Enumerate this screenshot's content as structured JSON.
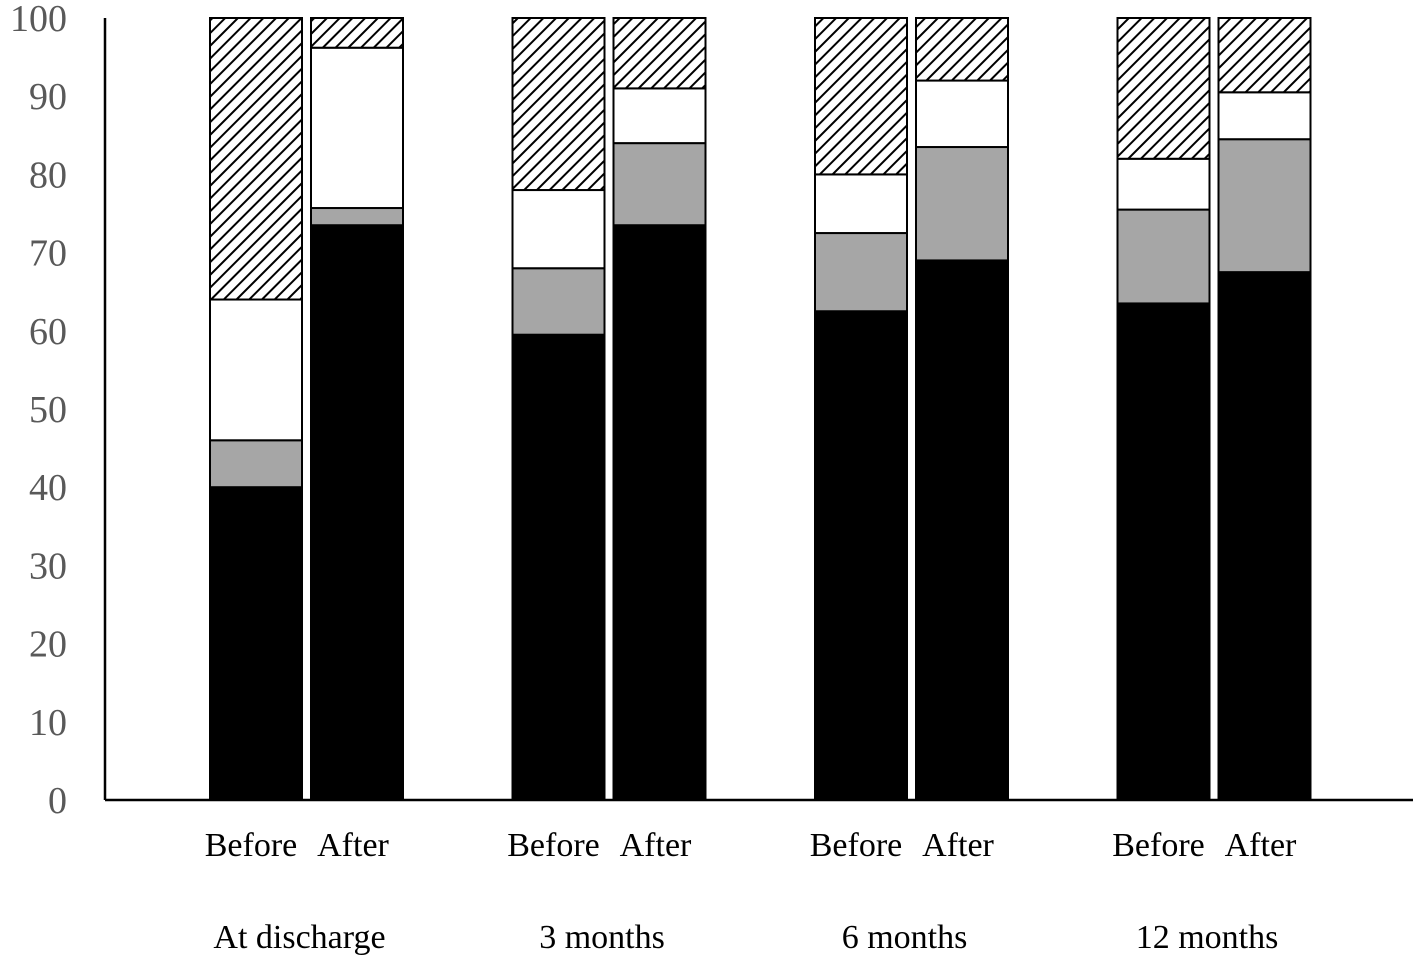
{
  "chart_data": {
    "type": "bar",
    "stacked": true,
    "title": "",
    "xlabel": "",
    "ylabel": "",
    "ylim": [
      0,
      100
    ],
    "yticks": [
      "0",
      "10",
      "20",
      "30",
      "40",
      "50",
      "60",
      "70",
      "80",
      "90",
      "100"
    ],
    "grid": false,
    "legend": "none",
    "groups": [
      {
        "label": "At discharge",
        "bars": [
          {
            "label": "Before",
            "segments": [
              40,
              6,
              18,
              37
            ]
          },
          {
            "label": "After",
            "segments": [
              73.5,
              2.2,
              20.5,
              3.8
            ]
          }
        ]
      },
      {
        "label": "3 months",
        "bars": [
          {
            "label": "Before",
            "segments": [
              59.5,
              8.5,
              10,
              22
            ]
          },
          {
            "label": "After",
            "segments": [
              73.5,
              10.5,
              7,
              9
            ]
          }
        ]
      },
      {
        "label": "6 months",
        "bars": [
          {
            "label": "Before",
            "segments": [
              62.5,
              10,
              7.5,
              20
            ]
          },
          {
            "label": "After",
            "segments": [
              69,
              14.5,
              8.5,
              8
            ]
          }
        ]
      },
      {
        "label": "12 months",
        "bars": [
          {
            "label": "Before",
            "segments": [
              63.5,
              12,
              6.5,
              18
            ]
          },
          {
            "label": "After",
            "segments": [
              67.5,
              17,
              6,
              9.5
            ]
          }
        ]
      }
    ],
    "segment_fills": [
      "black",
      "gray",
      "white",
      "hatched"
    ],
    "colors": {
      "black": "#000000",
      "gray": "#a6a6a6",
      "white": "#ffffff",
      "hatch_bg": "#ffffff",
      "hatch_line": "#000000",
      "axis": "#000000",
      "tick_text": "#595959"
    }
  }
}
